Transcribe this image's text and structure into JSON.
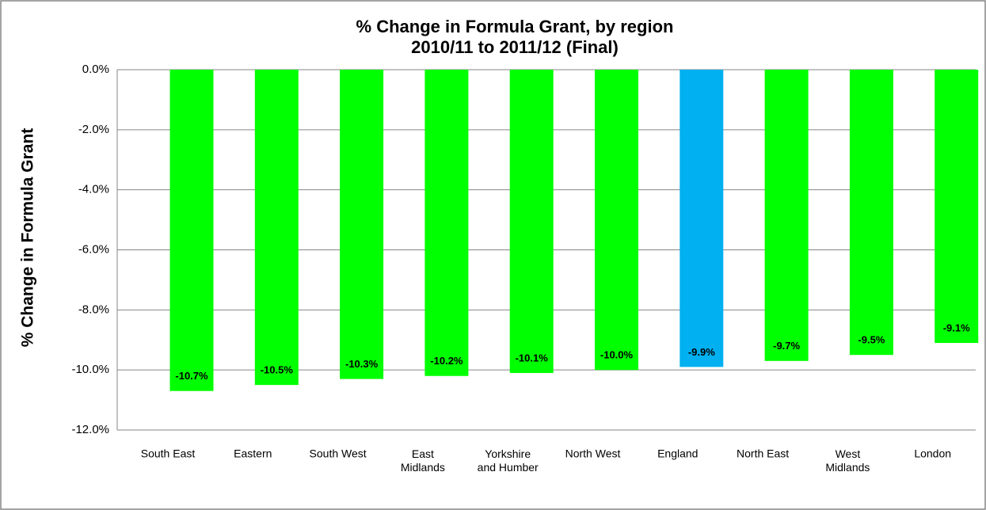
{
  "chart_data": {
    "type": "bar",
    "title": "% Change in Formula Grant, by region",
    "subtitle": "2010/11 to 2011/12 (Final)",
    "y_label": "% Change in Formula Grant",
    "categories": [
      "South East",
      "Eastern",
      "South West",
      "East\nMidlands",
      "Yorkshire\nand Humber",
      "North West",
      "England",
      "North East",
      "West\nMidlands",
      "London"
    ],
    "values": [
      -10.7,
      -10.5,
      -10.3,
      -10.2,
      -10.1,
      -10.0,
      -9.9,
      -9.7,
      -9.5,
      -9.1
    ],
    "value_labels": [
      "-10.7%",
      "-10.5%",
      "-10.3%",
      "-10.2%",
      "-10.1%",
      "-10.0%",
      "-9.9%",
      "-9.7%",
      "-9.5%",
      "-9.1%"
    ],
    "colors": [
      "#00ff00",
      "#00ff00",
      "#00ff00",
      "#00ff00",
      "#00ff00",
      "#00ff00",
      "#00b0f0",
      "#00ff00",
      "#00ff00",
      "#00ff00"
    ],
    "ylim": [
      -12,
      0
    ],
    "yticks": [
      {
        "value": 0,
        "label": "0.0%"
      },
      {
        "value": -2,
        "label": "-2.0%"
      },
      {
        "value": -4,
        "label": "-4.0%"
      },
      {
        "value": -6,
        "label": "-6.0%"
      },
      {
        "value": -8,
        "label": "-8.0%"
      },
      {
        "value": -10,
        "label": "-10.0%"
      },
      {
        "value": -12,
        "label": "-12.0%"
      }
    ],
    "grid": true
  }
}
